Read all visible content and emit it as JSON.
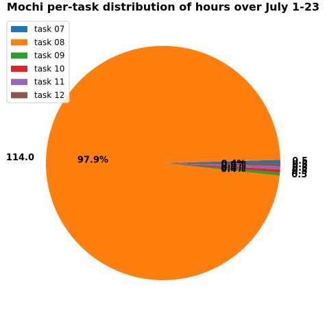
{
  "chart_data": {
    "type": "pie",
    "title": "Mochi per-task distribution of hours over July 1-23",
    "categories": [
      "task 07",
      "task 08",
      "task 09",
      "task 10",
      "task 11",
      "task 12"
    ],
    "values": [
      0.5,
      114.0,
      0.5,
      0.5,
      0.5,
      0.5
    ],
    "value_labels": [
      "0.5",
      "114.0",
      "0.5",
      "0.5",
      "0.5",
      "0.5"
    ],
    "percent_labels": [
      "0.4%",
      "97.9%",
      "0.4%",
      "0.4%",
      "0.4%",
      "0.4%"
    ],
    "colors": [
      "#1f77b4",
      "#ff7f0e",
      "#2ca02c",
      "#d62728",
      "#9467bd",
      "#8c564b"
    ],
    "start_angle": 0,
    "legend": "upper left"
  }
}
